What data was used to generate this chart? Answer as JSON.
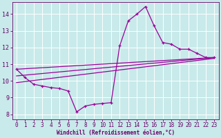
{
  "xlabel": "Windchill (Refroidissement éolien,°C)",
  "bg_color": "#c8eaea",
  "grid_color": "#ffffff",
  "line_color": "#990099",
  "xlim": [
    -0.5,
    23.5
  ],
  "ylim": [
    7.7,
    14.7
  ],
  "xticks": [
    0,
    1,
    2,
    3,
    4,
    5,
    6,
    7,
    8,
    9,
    10,
    11,
    12,
    13,
    14,
    15,
    16,
    17,
    18,
    19,
    20,
    21,
    22,
    23
  ],
  "yticks": [
    8,
    9,
    10,
    11,
    12,
    13,
    14
  ],
  "curve1_x": [
    0,
    1,
    2,
    3,
    4,
    5,
    6,
    7,
    8,
    9,
    10,
    11,
    12,
    13,
    14,
    15,
    16,
    17,
    18,
    19,
    20,
    21,
    22,
    23
  ],
  "curve1_y": [
    10.7,
    10.2,
    9.8,
    9.7,
    9.6,
    9.55,
    9.4,
    8.15,
    8.5,
    8.6,
    8.65,
    8.7,
    12.1,
    13.6,
    14.0,
    14.45,
    13.3,
    12.3,
    12.2,
    11.9,
    11.9,
    11.65,
    11.4,
    11.4
  ],
  "trend1_x": [
    0,
    23
  ],
  "trend1_y": [
    10.7,
    11.4
  ],
  "trend2_x": [
    0,
    23
  ],
  "trend2_y": [
    10.3,
    11.4
  ],
  "trend3_x": [
    0,
    23
  ],
  "trend3_y": [
    9.9,
    11.35
  ],
  "tick_color": "#660066",
  "tick_fontsize": 5.5,
  "xlabel_fontsize": 5.5
}
